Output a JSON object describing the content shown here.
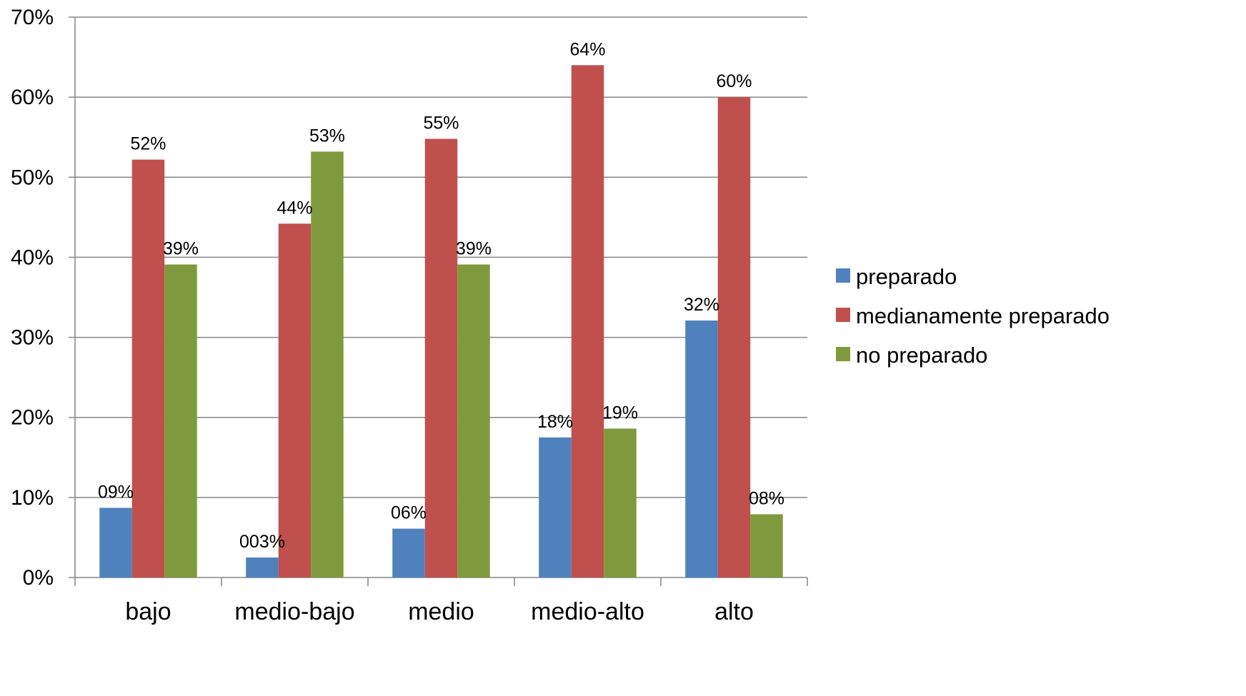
{
  "chart_data": {
    "type": "bar",
    "categories": [
      "bajo",
      "medio-bajo",
      "medio",
      "medio-alto",
      "alto"
    ],
    "series": [
      {
        "name": "preparado",
        "color": "#4F81BD",
        "values": [
          0.087,
          0.025,
          0.061,
          0.175,
          0.321
        ],
        "labels": [
          "09%",
          "003%",
          "06%",
          "18%",
          "32%"
        ]
      },
      {
        "name": "medianamente preparado",
        "color": "#C0504D",
        "values": [
          0.522,
          0.442,
          0.548,
          0.64,
          0.6
        ],
        "labels": [
          "52%",
          "44%",
          "55%",
          "64%",
          "60%"
        ]
      },
      {
        "name": "no preparado",
        "color": "#7F9A3C",
        "values": [
          0.391,
          0.532,
          0.391,
          0.186,
          0.079
        ],
        "labels": [
          "39%",
          "53%",
          "39%",
          "19%",
          "08%"
        ]
      }
    ],
    "yticks": [
      "0%",
      "10%",
      "20%",
      "30%",
      "40%",
      "50%",
      "60%",
      "70%"
    ],
    "ylim": [
      0,
      0.7
    ],
    "grid": true,
    "legend": "right",
    "gridColor": "#868686",
    "axisColor": "#868686"
  }
}
